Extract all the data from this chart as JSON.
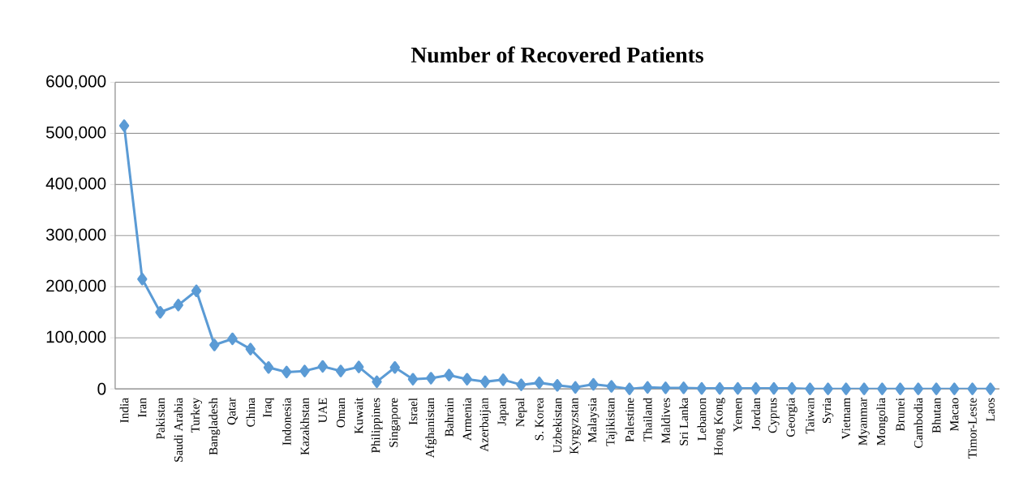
{
  "chart_data": {
    "type": "line",
    "title": "Number of Recovered Patients",
    "categories": [
      "India",
      "Iran",
      "Pakistan",
      "Saudi Arabia",
      "Turkey",
      "Bangladesh",
      "Qatar",
      "China",
      "Iraq",
      "Indonesia",
      "Kazakhstan",
      "UAE",
      "Oman",
      "Kuwait",
      "Philippines",
      "Singapore",
      "Israel",
      "Afghanistan",
      "Bahrain",
      "Armenia",
      "Azerbaijan",
      "Japan",
      "Nepal",
      "S. Korea",
      "Uzbekistan",
      "Kyrgyzstan",
      "Malaysia",
      "Tajikistan",
      "Palestine",
      "Thailand",
      "Maldives",
      "Sri Lanka",
      "Lebanon",
      "Hong Kong",
      "Yemen",
      "Jordan",
      "Cyprus",
      "Georgia",
      "Taiwan",
      "Syria",
      "Vietnam",
      "Myanmar",
      "Mongolia",
      "Brunei",
      "Cambodia",
      "Bhutan",
      "Macao",
      "Timor-Leste",
      "Laos"
    ],
    "values": [
      515000,
      215000,
      150000,
      164000,
      192000,
      86000,
      98000,
      78000,
      42000,
      33000,
      35000,
      44000,
      35000,
      43000,
      14000,
      42000,
      19000,
      21000,
      27000,
      19000,
      14000,
      18000,
      8000,
      12000,
      7000,
      3000,
      9000,
      5000,
      0,
      3000,
      2000,
      2000,
      1000,
      1000,
      1000,
      1000,
      1000,
      1000,
      0,
      0,
      0,
      0,
      0,
      0,
      0,
      0,
      0,
      0,
      0
    ],
    "color": "#5b9bd5",
    "ylim": [
      0,
      600000
    ],
    "yticks": [
      {
        "value": 0,
        "label": "0"
      },
      {
        "value": 100000,
        "label": "100,000"
      },
      {
        "value": 200000,
        "label": "200,000"
      },
      {
        "value": 300000,
        "label": "300,000"
      },
      {
        "value": 400000,
        "label": "400,000"
      },
      {
        "value": 500000,
        "label": "500,000"
      },
      {
        "value": 600000,
        "label": "600,000"
      }
    ],
    "grid": "y",
    "marker": "diamond",
    "line_style": "solid"
  }
}
